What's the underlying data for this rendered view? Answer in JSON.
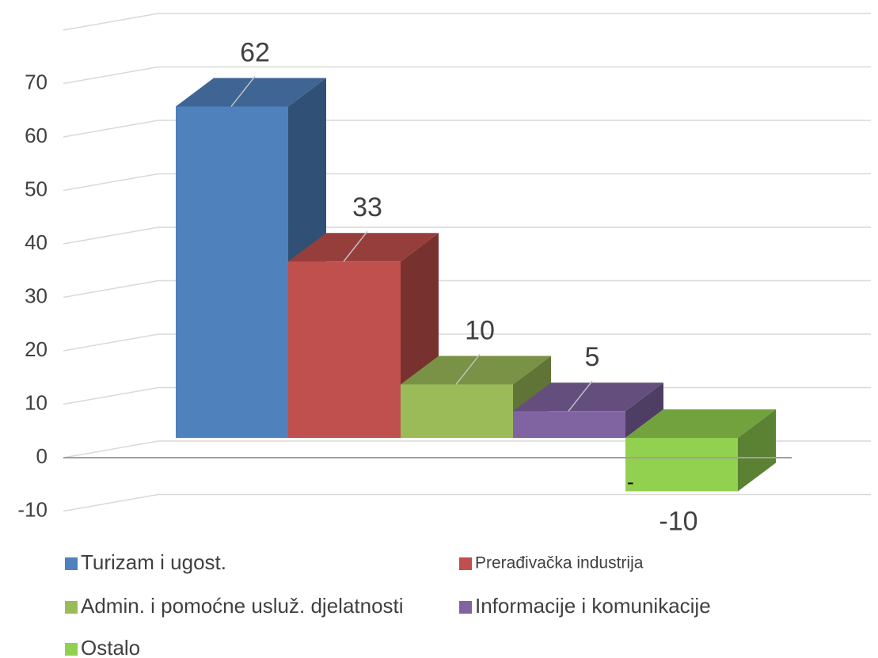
{
  "chart_data": {
    "type": "bar3d",
    "categories": [
      null
    ],
    "series": [
      {
        "name": "Turizam i ugost.",
        "color": "#4f81bd",
        "values": [
          62
        ]
      },
      {
        "name": "Prerađivačka industrija",
        "color": "#c0504d",
        "values": [
          33
        ]
      },
      {
        "name": "Admin. i pomoćne usluž. djelatnosti",
        "color": "#9bbb59",
        "values": [
          10
        ]
      },
      {
        "name": "Informacije i komunikacije",
        "color": "#8064a2",
        "values": [
          5
        ]
      },
      {
        "name": "Ostalo",
        "color": "#92d050",
        "values": [
          -10
        ]
      }
    ],
    "annotations": [
      "-"
    ],
    "ylim": [
      -10,
      80
    ],
    "yticks": [
      -10,
      0,
      10,
      20,
      30,
      40,
      50,
      60,
      70
    ],
    "grid": true,
    "legend": "bottom"
  }
}
